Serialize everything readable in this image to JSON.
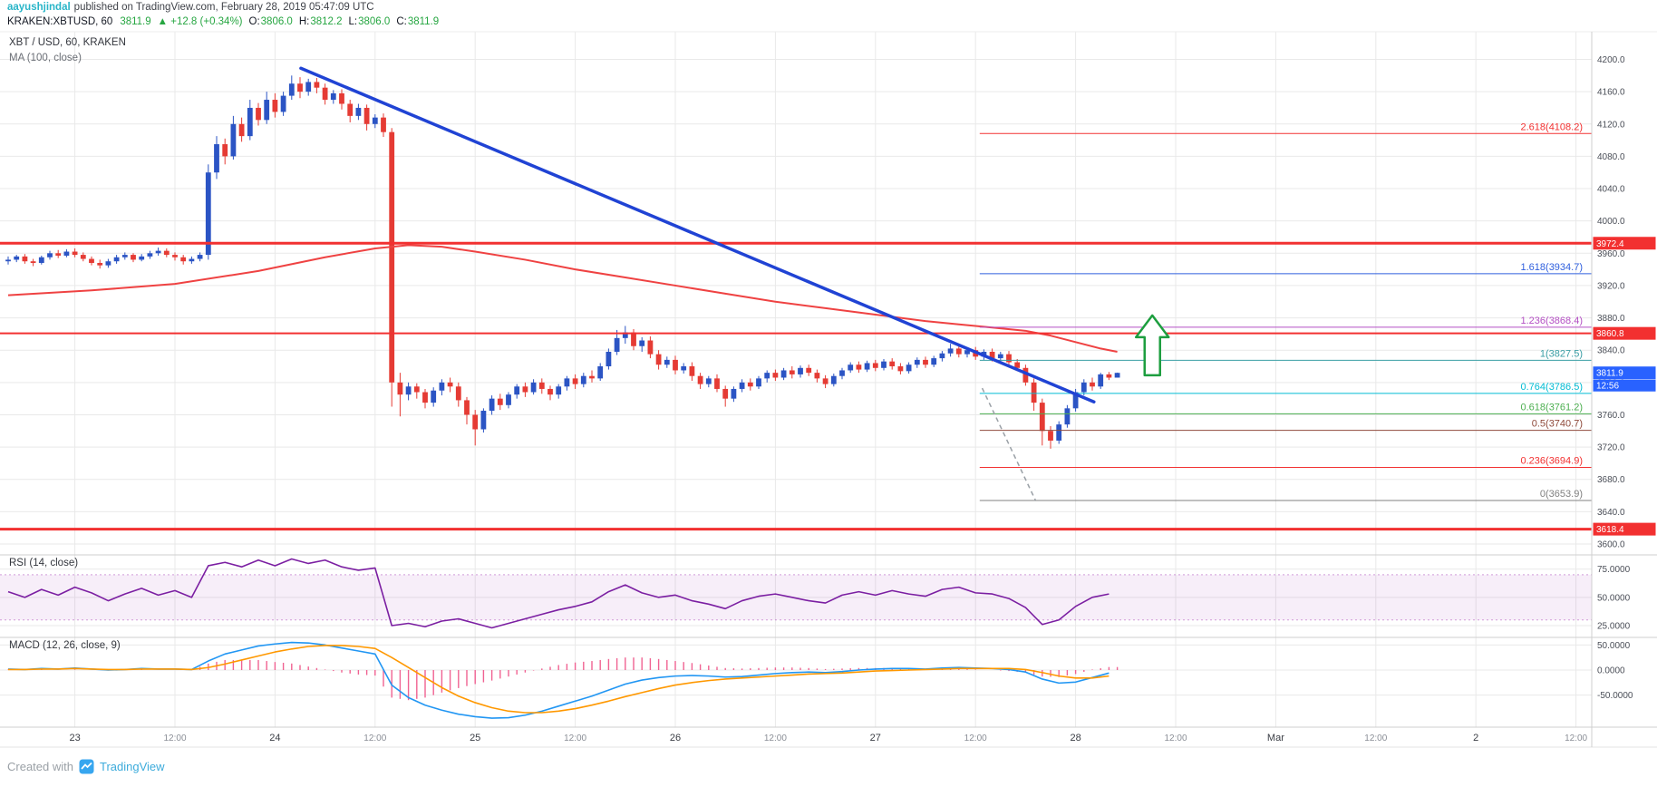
{
  "header": {
    "author": "aayushjindal",
    "published": "published on TradingView.com, February 28, 2019 05:47:09 UTC",
    "symbol": "KRAKEN:XBTUSD, 60",
    "last": "3811.9",
    "change": "▲ +12.8 (+0.34%)",
    "o_label": "O:",
    "o_value": "3806.0",
    "h_label": "H:",
    "h_value": "3812.2",
    "l_label": "L:",
    "l_value": "3806.0",
    "c_label": "C:",
    "c_value": "3811.9"
  },
  "panes": {
    "main_title": "XBT / USD, 60, KRAKEN",
    "main_indicator": "MA (100, close)",
    "rsi_title": "RSI (14, close)",
    "macd_title": "MACD (12, 26, close, 9)"
  },
  "footer": {
    "created_with": "Created with",
    "brand": "TradingView"
  },
  "colors": {
    "up": "#2b54c4",
    "down": "#e53b34",
    "up_text": "#26a641",
    "level": "#f23030",
    "ma": "#ef4242",
    "trend": "#2043d4",
    "rsi": "#7b1fa2",
    "rsi_band": "rgba(156,39,176,0.08)",
    "rsi_band_edge": "rgba(156,39,176,0.45)",
    "macd": "#2196f3",
    "signal": "#ff9800",
    "hist": "#f06292",
    "arrow": "#1d9e3f",
    "author": "#28b5c8",
    "brand": "#3cabdb",
    "box_red": "#f23030",
    "box_blue": "#2962ff"
  },
  "axis": {
    "price_ticks": [
      "4200.0",
      "4160.0",
      "4120.0",
      "4080.0",
      "4040.0",
      "4000.0",
      "3960.0",
      "3920.0",
      "3880.0",
      "3840.0",
      "3800.0",
      "3760.0",
      "3720.0",
      "3680.0",
      "3640.0",
      "3600.0"
    ],
    "rsi_ticks": [
      "75.0000",
      "50.0000",
      "25.0000"
    ],
    "macd_ticks": [
      "50.0000",
      "0.0000",
      "-50.0000"
    ],
    "boxes": [
      {
        "label": "3972.4",
        "price": 3972.4,
        "bg": "#f23030"
      },
      {
        "label": "3860.8",
        "price": 3860.8,
        "bg": "#f23030"
      },
      {
        "label": "3618.4",
        "price": 3618.4,
        "bg": "#f23030"
      }
    ],
    "last_price_box": {
      "label": "3811.9",
      "price": 3811.9,
      "bg": "#2962ff",
      "countdown": "12:56"
    }
  },
  "time_axis": {
    "labels": [
      {
        "text": "23",
        "hour": 8,
        "major": true
      },
      {
        "text": "12:00",
        "hour": 20,
        "major": false
      },
      {
        "text": "24",
        "hour": 32,
        "major": true
      },
      {
        "text": "12:00",
        "hour": 44,
        "major": false
      },
      {
        "text": "25",
        "hour": 56,
        "major": true
      },
      {
        "text": "12:00",
        "hour": 68,
        "major": false
      },
      {
        "text": "26",
        "hour": 80,
        "major": true
      },
      {
        "text": "12:00",
        "hour": 92,
        "major": false
      },
      {
        "text": "27",
        "hour": 104,
        "major": true
      },
      {
        "text": "12:00",
        "hour": 116,
        "major": false
      },
      {
        "text": "28",
        "hour": 128,
        "major": true
      },
      {
        "text": "12:00",
        "hour": 140,
        "major": false
      },
      {
        "text": "Mar",
        "hour": 152,
        "major": true
      },
      {
        "text": "12:00",
        "hour": 164,
        "major": false
      },
      {
        "text": "2",
        "hour": 176,
        "major": true
      },
      {
        "text": "12:00",
        "hour": 188,
        "major": false
      }
    ]
  },
  "fib_levels": [
    {
      "label": "2.618(4108.2)",
      "price": 4108.2,
      "color": "#f23030"
    },
    {
      "label": "1.618(3934.7)",
      "price": 3934.7,
      "color": "#2f5fde"
    },
    {
      "label": "1.236(3868.4)",
      "price": 3868.4,
      "color": "#b44fc4"
    },
    {
      "label": "1(3827.5)",
      "price": 3827.5,
      "color": "#3a9ea5"
    },
    {
      "label": "0.764(3786.5)",
      "price": 3786.5,
      "color": "#00bcd4"
    },
    {
      "label": "0.618(3761.2)",
      "price": 3761.2,
      "color": "#4caf50"
    },
    {
      "label": "0.5(3740.7)",
      "price": 3740.7,
      "color": "#8f4a3b"
    },
    {
      "label": "0.236(3694.9)",
      "price": 3694.9,
      "color": "#f23030"
    },
    {
      "label": "0(3653.9)",
      "price": 3653.9,
      "color": "#808080"
    }
  ],
  "drawings": {
    "levels": [
      {
        "price": 3972.4,
        "w": 3
      },
      {
        "price": 3860.8,
        "w": 2
      },
      {
        "price": 3618.4,
        "w": 3
      }
    ],
    "trendline": {
      "from_hour": 35.1,
      "from_price": 4189,
      "to_hour": 130.2,
      "to_price": 3776
    },
    "fib_start_hour": 116.5,
    "fib_dashed": {
      "from_hour": 116.8,
      "from_price": 3793,
      "to_hour": 123.2,
      "to_price": 3653.9
    },
    "arrow": {
      "hour": 137.2,
      "tip_price": 3883,
      "base_price": 3809
    }
  },
  "chart_data": {
    "type": "candlestick",
    "symbol": "KRAKEN:XBTUSD",
    "interval": "60",
    "title": "XBT / USD, 60, KRAKEN",
    "y_axis": {
      "min": 3600,
      "max": 4200,
      "tick": 40
    },
    "x_unit": "hours, one candle per hour, hour 0 = Feb 22 16:00 UTC, hour 8 = Feb 23 00:00",
    "candles": [
      [
        3950,
        3956,
        3946,
        3952
      ],
      [
        3952,
        3958,
        3949,
        3956
      ],
      [
        3956,
        3959,
        3947,
        3950
      ],
      [
        3950,
        3953,
        3944,
        3948
      ],
      [
        3948,
        3957,
        3946,
        3955
      ],
      [
        3955,
        3963,
        3952,
        3960
      ],
      [
        3960,
        3964,
        3954,
        3957
      ],
      [
        3957,
        3965,
        3955,
        3962
      ],
      [
        3962,
        3966,
        3955,
        3958
      ],
      [
        3958,
        3961,
        3950,
        3953
      ],
      [
        3953,
        3956,
        3945,
        3948
      ],
      [
        3948,
        3952,
        3941,
        3945
      ],
      [
        3945,
        3953,
        3942,
        3950
      ],
      [
        3950,
        3958,
        3947,
        3955
      ],
      [
        3955,
        3961,
        3952,
        3958
      ],
      [
        3958,
        3960,
        3949,
        3952
      ],
      [
        3952,
        3959,
        3950,
        3956
      ],
      [
        3956,
        3963,
        3953,
        3960
      ],
      [
        3960,
        3967,
        3957,
        3963
      ],
      [
        3963,
        3966,
        3955,
        3958
      ],
      [
        3958,
        3961,
        3951,
        3955
      ],
      [
        3955,
        3958,
        3946,
        3950
      ],
      [
        3950,
        3956,
        3947,
        3953
      ],
      [
        3953,
        3961,
        3950,
        3958
      ],
      [
        3958,
        4070,
        3952,
        4060
      ],
      [
        4060,
        4105,
        4052,
        4095
      ],
      [
        4095,
        4102,
        4070,
        4080
      ],
      [
        4080,
        4130,
        4076,
        4120
      ],
      [
        4120,
        4128,
        4098,
        4105
      ],
      [
        4105,
        4150,
        4100,
        4140
      ],
      [
        4140,
        4146,
        4118,
        4125
      ],
      [
        4125,
        4160,
        4120,
        4150
      ],
      [
        4150,
        4158,
        4128,
        4135
      ],
      [
        4135,
        4160,
        4130,
        4155
      ],
      [
        4155,
        4180,
        4150,
        4170
      ],
      [
        4170,
        4178,
        4152,
        4160
      ],
      [
        4160,
        4176,
        4155,
        4172
      ],
      [
        4172,
        4177,
        4158,
        4165
      ],
      [
        4165,
        4170,
        4144,
        4150
      ],
      [
        4150,
        4162,
        4145,
        4158
      ],
      [
        4158,
        4163,
        4138,
        4145
      ],
      [
        4145,
        4150,
        4122,
        4130
      ],
      [
        4130,
        4145,
        4125,
        4140
      ],
      [
        4140,
        4144,
        4112,
        4120
      ],
      [
        4120,
        4132,
        4115,
        4128
      ],
      [
        4128,
        4133,
        4104,
        4110
      ],
      [
        4110,
        4115,
        3770,
        3800
      ],
      [
        3800,
        3812,
        3758,
        3785
      ],
      [
        3785,
        3800,
        3778,
        3795
      ],
      [
        3795,
        3799,
        3780,
        3788
      ],
      [
        3788,
        3792,
        3768,
        3775
      ],
      [
        3775,
        3794,
        3770,
        3790
      ],
      [
        3790,
        3804,
        3784,
        3800
      ],
      [
        3800,
        3806,
        3788,
        3795
      ],
      [
        3795,
        3800,
        3770,
        3778
      ],
      [
        3778,
        3782,
        3748,
        3760
      ],
      [
        3760,
        3766,
        3722,
        3742
      ],
      [
        3742,
        3768,
        3738,
        3765
      ],
      [
        3765,
        3784,
        3760,
        3780
      ],
      [
        3780,
        3786,
        3766,
        3772
      ],
      [
        3772,
        3788,
        3768,
        3785
      ],
      [
        3785,
        3798,
        3780,
        3795
      ],
      [
        3795,
        3800,
        3782,
        3788
      ],
      [
        3788,
        3804,
        3785,
        3800
      ],
      [
        3800,
        3805,
        3786,
        3792
      ],
      [
        3792,
        3796,
        3778,
        3785
      ],
      [
        3785,
        3798,
        3780,
        3795
      ],
      [
        3795,
        3808,
        3790,
        3805
      ],
      [
        3805,
        3810,
        3792,
        3798
      ],
      [
        3798,
        3812,
        3794,
        3808
      ],
      [
        3808,
        3815,
        3800,
        3805
      ],
      [
        3805,
        3824,
        3802,
        3820
      ],
      [
        3820,
        3842,
        3816,
        3838
      ],
      [
        3838,
        3865,
        3834,
        3855
      ],
      [
        3855,
        3870,
        3848,
        3862
      ],
      [
        3862,
        3866,
        3840,
        3845
      ],
      [
        3845,
        3856,
        3838,
        3852
      ],
      [
        3852,
        3857,
        3830,
        3835
      ],
      [
        3835,
        3840,
        3816,
        3822
      ],
      [
        3822,
        3832,
        3818,
        3828
      ],
      [
        3828,
        3833,
        3810,
        3815
      ],
      [
        3815,
        3824,
        3811,
        3820
      ],
      [
        3820,
        3825,
        3802,
        3808
      ],
      [
        3808,
        3812,
        3792,
        3798
      ],
      [
        3798,
        3808,
        3794,
        3805
      ],
      [
        3805,
        3810,
        3788,
        3792
      ],
      [
        3792,
        3796,
        3770,
        3780
      ],
      [
        3780,
        3795,
        3776,
        3792
      ],
      [
        3792,
        3804,
        3788,
        3800
      ],
      [
        3800,
        3805,
        3790,
        3795
      ],
      [
        3795,
        3808,
        3792,
        3805
      ],
      [
        3805,
        3815,
        3800,
        3812
      ],
      [
        3812,
        3816,
        3802,
        3806
      ],
      [
        3806,
        3818,
        3803,
        3815
      ],
      [
        3815,
        3820,
        3805,
        3810
      ],
      [
        3810,
        3821,
        3806,
        3818
      ],
      [
        3818,
        3822,
        3808,
        3812
      ],
      [
        3812,
        3816,
        3800,
        3805
      ],
      [
        3805,
        3809,
        3793,
        3798
      ],
      [
        3798,
        3811,
        3795,
        3808
      ],
      [
        3808,
        3818,
        3804,
        3815
      ],
      [
        3815,
        3825,
        3812,
        3822
      ],
      [
        3822,
        3826,
        3812,
        3816
      ],
      [
        3816,
        3827,
        3813,
        3824
      ],
      [
        3824,
        3828,
        3814,
        3818
      ],
      [
        3818,
        3829,
        3815,
        3826
      ],
      [
        3826,
        3830,
        3816,
        3820
      ],
      [
        3820,
        3824,
        3810,
        3814
      ],
      [
        3814,
        3825,
        3811,
        3822
      ],
      [
        3822,
        3831,
        3818,
        3828
      ],
      [
        3828,
        3832,
        3818,
        3822
      ],
      [
        3822,
        3833,
        3819,
        3830
      ],
      [
        3830,
        3839,
        3826,
        3836
      ],
      [
        3836,
        3848,
        3832,
        3842
      ],
      [
        3842,
        3846,
        3831,
        3835
      ],
      [
        3835,
        3843,
        3831,
        3840
      ],
      [
        3840,
        3844,
        3828,
        3832
      ],
      [
        3832,
        3841,
        3828,
        3838
      ],
      [
        3838,
        3842,
        3826,
        3830
      ],
      [
        3830,
        3838,
        3826,
        3835
      ],
      [
        3835,
        3839,
        3821,
        3825
      ],
      [
        3825,
        3829,
        3814,
        3818
      ],
      [
        3818,
        3822,
        3796,
        3800
      ],
      [
        3800,
        3805,
        3765,
        3775
      ],
      [
        3775,
        3780,
        3722,
        3740
      ],
      [
        3740,
        3746,
        3718,
        3728
      ],
      [
        3728,
        3752,
        3724,
        3748
      ],
      [
        3748,
        3772,
        3744,
        3768
      ],
      [
        3768,
        3792,
        3764,
        3788
      ],
      [
        3788,
        3804,
        3784,
        3800
      ],
      [
        3800,
        3806,
        3790,
        3795
      ],
      [
        3795,
        3812,
        3792,
        3810
      ],
      [
        3810,
        3813,
        3803,
        3806
      ],
      [
        3806,
        3812.2,
        3806,
        3811.9
      ]
    ],
    "ma100_anchors": [
      [
        0,
        3908
      ],
      [
        10,
        3914
      ],
      [
        20,
        3922
      ],
      [
        30,
        3938
      ],
      [
        38,
        3955
      ],
      [
        44,
        3966
      ],
      [
        48,
        3970
      ],
      [
        52,
        3968
      ],
      [
        56,
        3962
      ],
      [
        62,
        3952
      ],
      [
        68,
        3940
      ],
      [
        74,
        3930
      ],
      [
        80,
        3920
      ],
      [
        86,
        3910
      ],
      [
        92,
        3900
      ],
      [
        98,
        3892
      ],
      [
        104,
        3884
      ],
      [
        110,
        3876
      ],
      [
        114,
        3872
      ],
      [
        118,
        3868
      ],
      [
        122,
        3864
      ],
      [
        125,
        3858
      ],
      [
        128,
        3850
      ],
      [
        131,
        3842
      ],
      [
        133,
        3838
      ]
    ],
    "rsi": {
      "step": 2,
      "values": [
        55,
        50,
        57,
        52,
        59,
        54,
        47,
        53,
        58,
        52,
        56,
        50,
        78,
        81,
        77,
        83,
        78,
        84,
        80,
        83,
        77,
        74,
        76,
        25,
        27,
        24,
        29,
        31,
        27,
        23,
        27,
        31,
        35,
        39,
        42,
        46,
        55,
        61,
        54,
        50,
        52,
        47,
        44,
        40,
        47,
        51,
        53,
        50,
        47,
        45,
        52,
        55,
        52,
        56,
        53,
        51,
        57,
        59,
        54,
        53,
        49,
        41,
        26,
        30,
        42,
        50,
        53
      ]
    },
    "macd": {
      "step": 2,
      "macd": [
        2,
        1,
        3,
        2,
        4,
        2,
        0,
        1,
        3,
        2,
        2,
        1,
        18,
        32,
        40,
        48,
        52,
        55,
        54,
        50,
        44,
        38,
        32,
        -30,
        -55,
        -70,
        -80,
        -88,
        -93,
        -96,
        -95,
        -90,
        -82,
        -72,
        -62,
        -52,
        -40,
        -28,
        -20,
        -15,
        -12,
        -11,
        -12,
        -14,
        -13,
        -10,
        -7,
        -5,
        -4,
        -5,
        -3,
        0,
        2,
        3,
        3,
        2,
        4,
        5,
        4,
        3,
        1,
        -4,
        -18,
        -26,
        -24,
        -15,
        -6
      ],
      "signal": [
        1,
        1,
        2,
        2,
        3,
        2,
        1,
        1,
        2,
        2,
        2,
        1,
        5,
        12,
        20,
        28,
        36,
        42,
        47,
        49,
        49,
        47,
        43,
        25,
        5,
        -15,
        -35,
        -52,
        -65,
        -75,
        -82,
        -85,
        -85,
        -82,
        -77,
        -70,
        -62,
        -53,
        -45,
        -37,
        -30,
        -25,
        -21,
        -18,
        -16,
        -14,
        -12,
        -10,
        -8,
        -7,
        -6,
        -4,
        -2,
        -1,
        0,
        1,
        2,
        3,
        3,
        3,
        3,
        1,
        -5,
        -12,
        -16,
        -16,
        -12
      ]
    }
  }
}
